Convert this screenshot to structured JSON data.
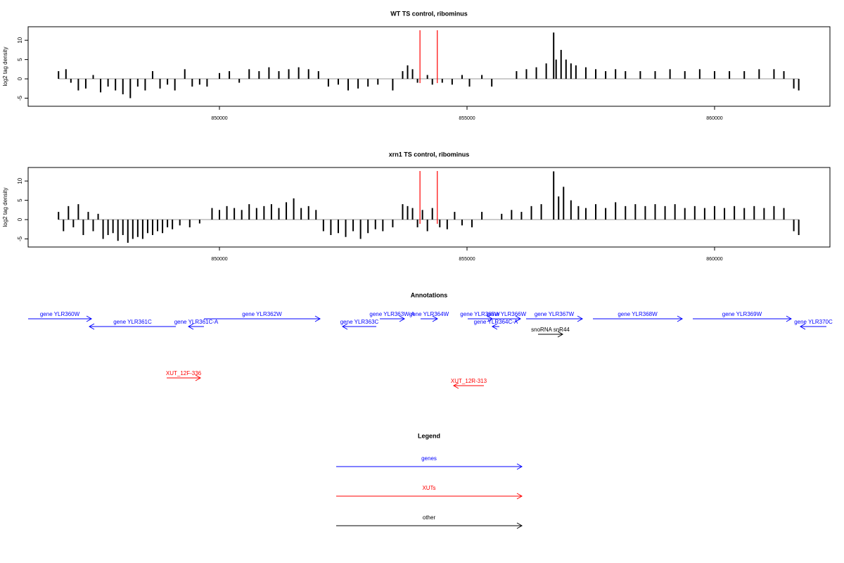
{
  "chart_data": [
    {
      "type": "bar",
      "title": "WT TS control, ribominus",
      "ylabel": "log2 tag density",
      "color": "#000000",
      "xlim": [
        846136,
        862330
      ],
      "ylim": [
        -7.1,
        13.5
      ],
      "xticks": [
        850000,
        855000,
        860000
      ],
      "yticks": [
        -5,
        0,
        5,
        10
      ],
      "markers": {
        "color": "#ff0000",
        "x": [
          854050,
          854400
        ]
      },
      "x": [
        846750,
        846900,
        847000,
        847150,
        847300,
        847450,
        847600,
        847750,
        847900,
        848050,
        848200,
        848350,
        848500,
        848650,
        848800,
        848950,
        849100,
        849300,
        849450,
        849600,
        849750,
        850000,
        850200,
        850400,
        850600,
        850800,
        851000,
        851200,
        851400,
        851600,
        851800,
        852000,
        852200,
        852400,
        852600,
        852800,
        853000,
        853200,
        853500,
        853700,
        853800,
        853900,
        854000,
        854200,
        854300,
        854500,
        854700,
        854900,
        855050,
        855300,
        855500,
        856000,
        856200,
        856400,
        856600,
        856750,
        856800,
        856900,
        857000,
        857100,
        857200,
        857400,
        857600,
        857800,
        858000,
        858200,
        858500,
        858800,
        859100,
        859400,
        859700,
        860000,
        860300,
        860600,
        860900,
        861200,
        861400,
        861600,
        861700
      ],
      "values": [
        2,
        2.5,
        -1,
        -3,
        -2.5,
        1,
        -3.5,
        -2,
        -3,
        -4,
        -5,
        -2,
        -3,
        2,
        -2.5,
        -1.5,
        -3,
        2.5,
        -2,
        -1.5,
        -2,
        1.5,
        2,
        -1,
        2.5,
        2,
        3,
        2,
        2.5,
        3,
        2.5,
        2,
        -2,
        -1.5,
        -3,
        -2.5,
        -2,
        -1.5,
        -3,
        2,
        3.5,
        2.5,
        -1,
        1,
        -1.5,
        -1,
        -1.5,
        1,
        -2,
        1,
        -2,
        2,
        2.5,
        3,
        4,
        12,
        5,
        7.5,
        5,
        4,
        3.5,
        3,
        2.5,
        2,
        2.5,
        2,
        2,
        2,
        2.5,
        2,
        2.5,
        2,
        2,
        2,
        2.5,
        2.5,
        2,
        -2.5,
        -3
      ]
    },
    {
      "type": "bar",
      "title": "xrn1 TS control, ribominus",
      "ylabel": "log2 tag density",
      "color": "#000000",
      "xlim": [
        846136,
        862330
      ],
      "ylim": [
        -7.1,
        13.5
      ],
      "xticks": [
        850000,
        855000,
        860000
      ],
      "yticks": [
        -5,
        0,
        5,
        10
      ],
      "markers": {
        "color": "#ff0000",
        "x": [
          854050,
          854400
        ]
      },
      "x": [
        846750,
        846850,
        846950,
        847050,
        847150,
        847250,
        847350,
        847450,
        847550,
        847650,
        847750,
        847850,
        847950,
        848050,
        848150,
        848250,
        848350,
        848450,
        848550,
        848650,
        848750,
        848850,
        848950,
        849050,
        849200,
        849400,
        849600,
        849850,
        850000,
        850150,
        850300,
        850450,
        850600,
        850750,
        850900,
        851050,
        851200,
        851350,
        851500,
        851650,
        851800,
        851950,
        852100,
        852250,
        852400,
        852550,
        852700,
        852850,
        853000,
        853150,
        853300,
        853500,
        853700,
        853800,
        853900,
        854000,
        854100,
        854200,
        854300,
        854450,
        854600,
        854750,
        854900,
        855100,
        855300,
        855700,
        855900,
        856100,
        856300,
        856500,
        856750,
        856850,
        856950,
        857100,
        857250,
        857400,
        857600,
        857800,
        858000,
        858200,
        858400,
        858600,
        858800,
        859000,
        859200,
        859400,
        859600,
        859800,
        860000,
        860200,
        860400,
        860600,
        860800,
        861000,
        861200,
        861400,
        861600,
        861700
      ],
      "values": [
        2,
        -3,
        3.5,
        -2,
        4,
        -4,
        2,
        -3,
        1.5,
        -5,
        -4,
        -3.5,
        -5.5,
        -4,
        -6,
        -5,
        -4.5,
        -5,
        -3.5,
        -4,
        -3,
        -3.5,
        -2,
        -2.5,
        -1.5,
        -2,
        -1,
        3,
        2.5,
        3.5,
        3,
        2.5,
        4,
        3,
        3.5,
        4,
        3,
        4.5,
        5.5,
        3,
        3.5,
        2.5,
        -3,
        -4,
        -3.5,
        -4.5,
        -3,
        -5,
        -3.5,
        -2.5,
        -3,
        -2,
        4,
        3.5,
        3,
        -2,
        2.5,
        -3,
        3,
        -2,
        -2.5,
        2,
        -1.5,
        -2,
        2,
        1.5,
        2.5,
        2,
        3.5,
        4,
        12.5,
        6,
        8.5,
        5,
        3.5,
        3,
        4,
        3,
        4.5,
        3.5,
        4,
        3.5,
        4,
        3.5,
        4,
        3,
        3.5,
        3,
        3.5,
        3,
        3.5,
        3,
        3.5,
        3,
        3.5,
        3,
        -3,
        -4
      ]
    }
  ],
  "annotations": {
    "title": "Annotations",
    "features": [
      {
        "label": "gene YLR360W",
        "type": "gene",
        "strand": "+",
        "start": 846136,
        "end": 847415
      },
      {
        "label": "gene YLR361C",
        "type": "gene",
        "strand": "-",
        "start": 847372,
        "end": 849119
      },
      {
        "label": "gene YLR361C-A",
        "type": "gene",
        "strand": "-",
        "start": 849375,
        "end": 849687
      },
      {
        "label": "gene YLR362W",
        "type": "gene",
        "strand": "+",
        "start": 849687,
        "end": 852031
      },
      {
        "label": "gene YLR363C",
        "type": "gene",
        "strand": "-",
        "start": 852486,
        "end": 853168
      },
      {
        "label": "gene YLR363W-A",
        "type": "gene",
        "strand": "+",
        "start": 853239,
        "end": 853736
      },
      {
        "label": "gene YLR364W",
        "type": "gene",
        "strand": "+",
        "start": 854062,
        "end": 854403
      },
      {
        "label": "gene YLR365W",
        "type": "gene",
        "strand": "+",
        "start": 855014,
        "end": 855511
      },
      {
        "label": "gene YLR366W",
        "type": "gene",
        "strand": "+",
        "start": 855511,
        "end": 856080
      },
      {
        "label": "gene YLR364C-A",
        "type": "gene",
        "strand": "-",
        "start": 855511,
        "end": 855653
      },
      {
        "label": "gene YLR367W",
        "type": "gene",
        "strand": "+",
        "start": 856193,
        "end": 857330
      },
      {
        "label": "snoRNA snR44",
        "type": "other",
        "strand": "+",
        "start": 856435,
        "end": 856932
      },
      {
        "label": "gene YLR368W",
        "type": "gene",
        "strand": "+",
        "start": 857543,
        "end": 859347
      },
      {
        "label": "gene YLR369W",
        "type": "gene",
        "strand": "+",
        "start": 859560,
        "end": 861548
      },
      {
        "label": "gene YLR370C",
        "type": "gene",
        "strand": "-",
        "start": 861733,
        "end": 862259
      },
      {
        "label": "XUT_12F-336",
        "type": "XUT",
        "strand": "+",
        "start": 848935,
        "end": 849616
      },
      {
        "label": "XUT_12R-313",
        "type": "XUT",
        "strand": "-",
        "start": 854730,
        "end": 855341
      }
    ]
  },
  "legend": {
    "title": "Legend",
    "entries": [
      {
        "label": "genes",
        "type": "gene",
        "color": "#0000ff"
      },
      {
        "label": "XUTs",
        "type": "XUT",
        "color": "#ff0000"
      },
      {
        "label": "other",
        "type": "other",
        "color": "#000000"
      }
    ]
  }
}
